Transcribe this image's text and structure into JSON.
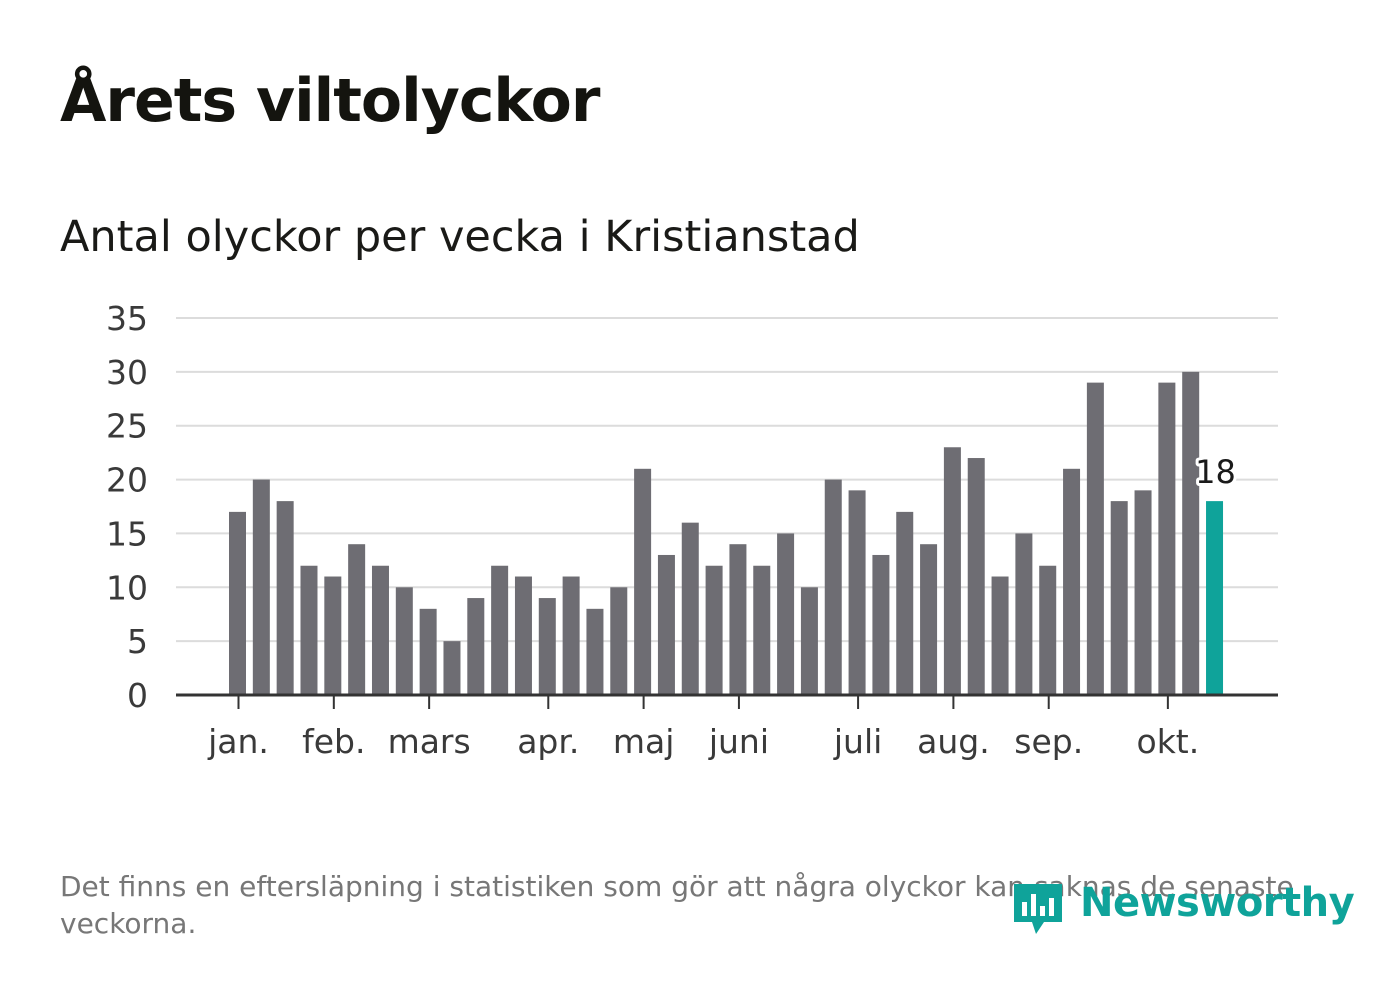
{
  "title": "Årets viltolyckor",
  "subtitle": "Antal olyckor per vecka i Kristianstad",
  "note": "Det finns en eftersläpning i statistiken som gör att några olyckor kan saknas de senaste veckorna.",
  "brand": {
    "name": "Newsworthy",
    "color": "#0fa39a"
  },
  "colors": {
    "bar": "#6e6d73",
    "highlight": "#0fa39a",
    "grid": "#dcdcdc",
    "axis": "#333333"
  },
  "chart_data": {
    "type": "bar",
    "title": "Antal olyckor per vecka i Kristianstad",
    "xlabel": "",
    "ylabel": "",
    "ylim": [
      0,
      35
    ],
    "yticks": [
      0,
      5,
      10,
      15,
      20,
      25,
      30,
      35
    ],
    "grid": true,
    "weeks": [
      1,
      2,
      3,
      4,
      5,
      6,
      7,
      8,
      9,
      10,
      11,
      12,
      13,
      14,
      15,
      16,
      17,
      18,
      19,
      20,
      21,
      22,
      23,
      24,
      25,
      26,
      27,
      28,
      29,
      30,
      31,
      32,
      33,
      34,
      35,
      36,
      37,
      38,
      39,
      40,
      41,
      42
    ],
    "values": [
      17,
      20,
      18,
      12,
      11,
      14,
      12,
      10,
      8,
      5,
      9,
      12,
      11,
      9,
      11,
      8,
      10,
      21,
      13,
      16,
      12,
      14,
      12,
      15,
      10,
      20,
      19,
      13,
      17,
      14,
      23,
      22,
      11,
      15,
      12,
      21,
      29,
      18,
      19,
      29,
      30,
      18
    ],
    "month_labels": [
      {
        "label": "jan.",
        "week": 1.5
      },
      {
        "label": "feb.",
        "week": 5.5
      },
      {
        "label": "mars",
        "week": 9.5
      },
      {
        "label": "apr.",
        "week": 14.5
      },
      {
        "label": "maj",
        "week": 18.5
      },
      {
        "label": "juni",
        "week": 22.5
      },
      {
        "label": "juli",
        "week": 27.5
      },
      {
        "label": "aug.",
        "week": 31.5
      },
      {
        "label": "sep.",
        "week": 35.5
      },
      {
        "label": "okt.",
        "week": 40.5
      }
    ],
    "highlight": {
      "week": 42,
      "value": 18,
      "label": "18"
    }
  }
}
